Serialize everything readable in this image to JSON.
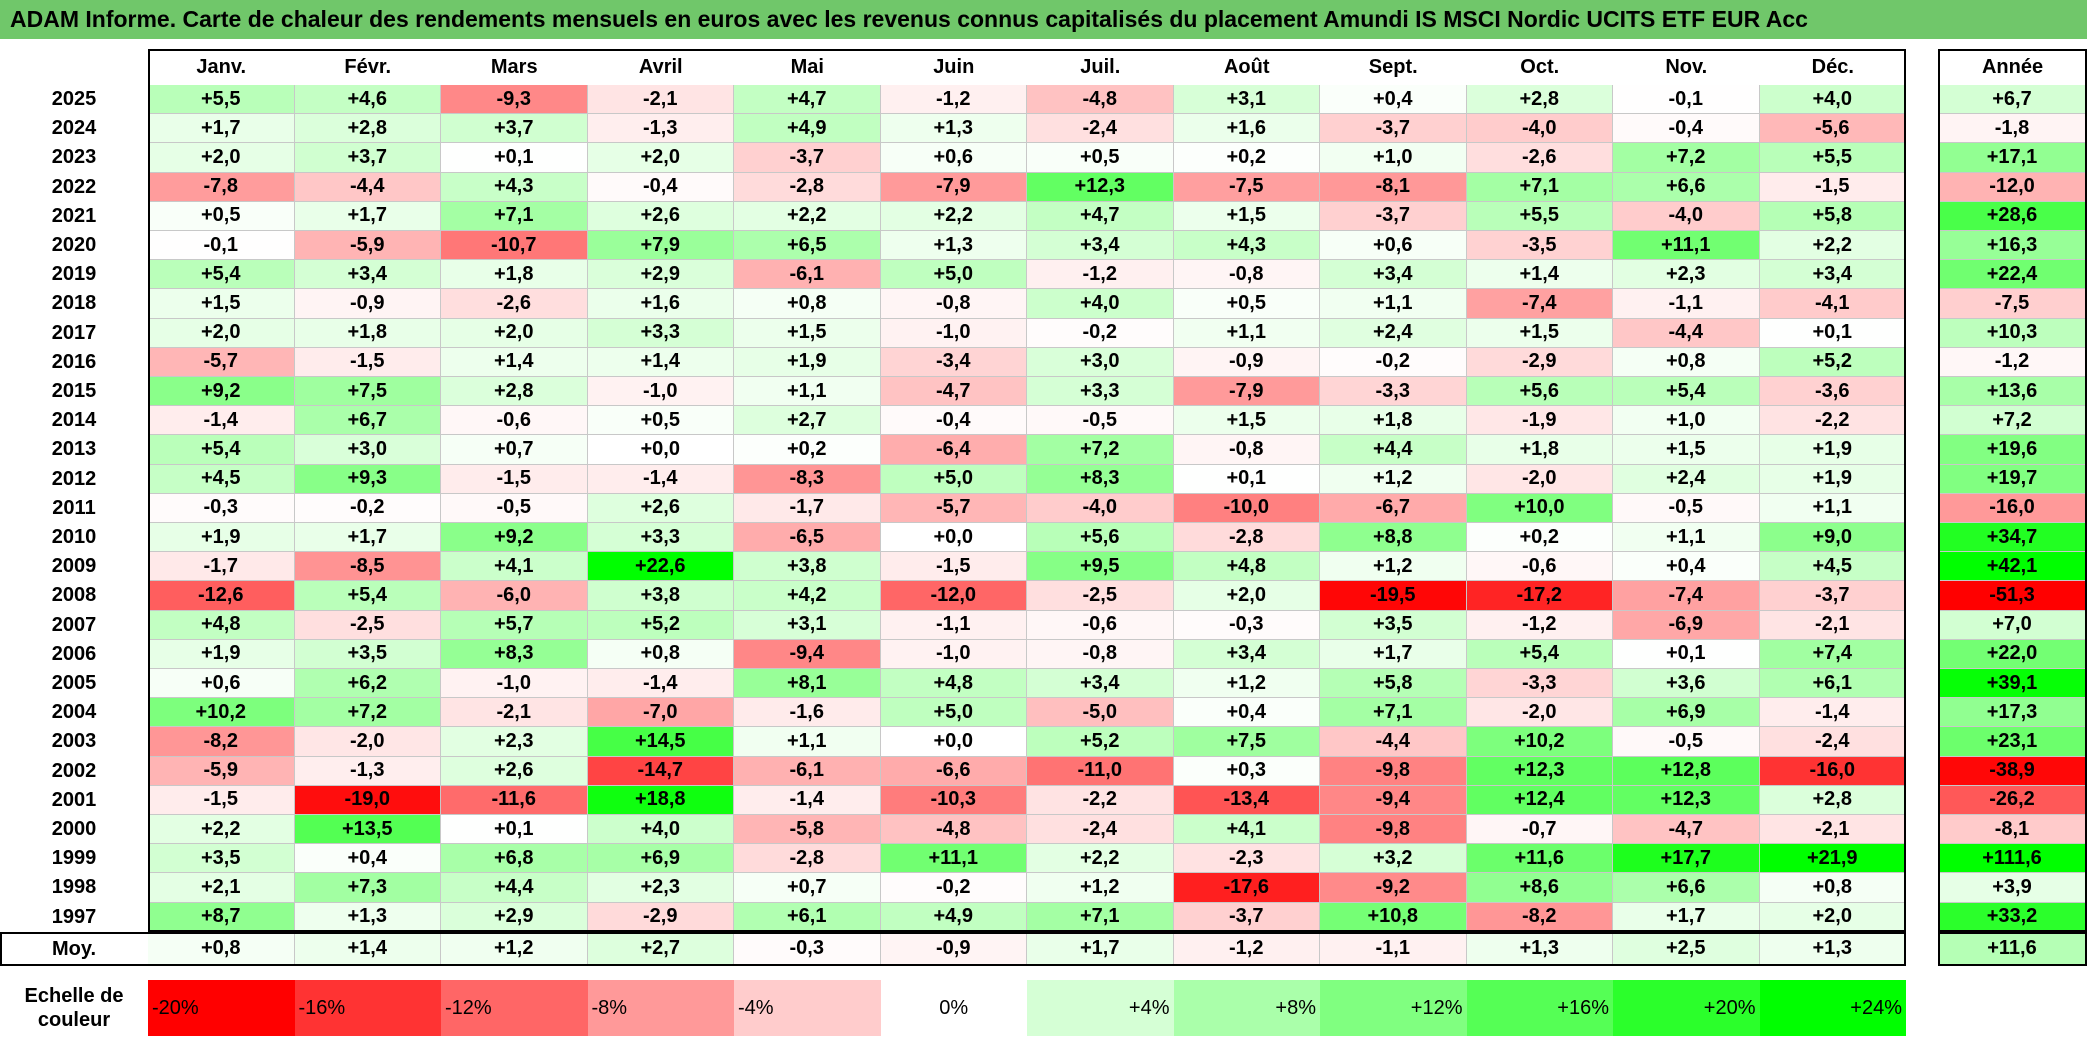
{
  "title": "ADAM Informe. Carte de chaleur des rendements mensuels en euros avec les revenus connus capitalisés du placement Amundi IS MSCI Nordic UCITS ETF EUR Acc",
  "chart_data": {
    "type": "heatmap",
    "columns": [
      "Janv.",
      "Févr.",
      "Mars",
      "Avril",
      "Mai",
      "Juin",
      "Juil.",
      "Août",
      "Sept.",
      "Oct.",
      "Nov.",
      "Déc."
    ],
    "annual_header": "Année",
    "average_label": "Moy.",
    "rows": [
      {
        "year": "2025",
        "values": [
          "+5,5",
          "+4,6",
          "-9,3",
          "-2,1",
          "+4,7",
          "-1,2",
          "-4,8",
          "+3,1",
          "+0,4",
          "+2,8",
          "-0,1",
          "+4,0"
        ],
        "annual": "+6,7"
      },
      {
        "year": "2024",
        "values": [
          "+1,7",
          "+2,8",
          "+3,7",
          "-1,3",
          "+4,9",
          "+1,3",
          "-2,4",
          "+1,6",
          "-3,7",
          "-4,0",
          "-0,4",
          "-5,6"
        ],
        "annual": "-1,8"
      },
      {
        "year": "2023",
        "values": [
          "+2,0",
          "+3,7",
          "+0,1",
          "+2,0",
          "-3,7",
          "+0,6",
          "+0,5",
          "+0,2",
          "+1,0",
          "-2,6",
          "+7,2",
          "+5,5"
        ],
        "annual": "+17,1"
      },
      {
        "year": "2022",
        "values": [
          "-7,8",
          "-4,4",
          "+4,3",
          "-0,4",
          "-2,8",
          "-7,9",
          "+12,3",
          "-7,5",
          "-8,1",
          "+7,1",
          "+6,6",
          "-1,5"
        ],
        "annual": "-12,0"
      },
      {
        "year": "2021",
        "values": [
          "+0,5",
          "+1,7",
          "+7,1",
          "+2,6",
          "+2,2",
          "+2,2",
          "+4,7",
          "+1,5",
          "-3,7",
          "+5,5",
          "-4,0",
          "+5,8"
        ],
        "annual": "+28,6"
      },
      {
        "year": "2020",
        "values": [
          "-0,1",
          "-5,9",
          "-10,7",
          "+7,9",
          "+6,5",
          "+1,3",
          "+3,4",
          "+4,3",
          "+0,6",
          "-3,5",
          "+11,1",
          "+2,2"
        ],
        "annual": "+16,3"
      },
      {
        "year": "2019",
        "values": [
          "+5,4",
          "+3,4",
          "+1,8",
          "+2,9",
          "-6,1",
          "+5,0",
          "-1,2",
          "-0,8",
          "+3,4",
          "+1,4",
          "+2,3",
          "+3,4"
        ],
        "annual": "+22,4"
      },
      {
        "year": "2018",
        "values": [
          "+1,5",
          "-0,9",
          "-2,6",
          "+1,6",
          "+0,8",
          "-0,8",
          "+4,0",
          "+0,5",
          "+1,1",
          "-7,4",
          "-1,1",
          "-4,1"
        ],
        "annual": "-7,5"
      },
      {
        "year": "2017",
        "values": [
          "+2,0",
          "+1,8",
          "+2,0",
          "+3,3",
          "+1,5",
          "-1,0",
          "-0,2",
          "+1,1",
          "+2,4",
          "+1,5",
          "-4,4",
          "+0,1"
        ],
        "annual": "+10,3"
      },
      {
        "year": "2016",
        "values": [
          "-5,7",
          "-1,5",
          "+1,4",
          "+1,4",
          "+1,9",
          "-3,4",
          "+3,0",
          "-0,9",
          "-0,2",
          "-2,9",
          "+0,8",
          "+5,2"
        ],
        "annual": "-1,2"
      },
      {
        "year": "2015",
        "values": [
          "+9,2",
          "+7,5",
          "+2,8",
          "-1,0",
          "+1,1",
          "-4,7",
          "+3,3",
          "-7,9",
          "-3,3",
          "+5,6",
          "+5,4",
          "-3,6"
        ],
        "annual": "+13,6"
      },
      {
        "year": "2014",
        "values": [
          "-1,4",
          "+6,7",
          "-0,6",
          "+0,5",
          "+2,7",
          "-0,4",
          "-0,5",
          "+1,5",
          "+1,8",
          "-1,9",
          "+1,0",
          "-2,2"
        ],
        "annual": "+7,2"
      },
      {
        "year": "2013",
        "values": [
          "+5,4",
          "+3,0",
          "+0,7",
          "+0,0",
          "+0,2",
          "-6,4",
          "+7,2",
          "-0,8",
          "+4,4",
          "+1,8",
          "+1,5",
          "+1,9"
        ],
        "annual": "+19,6"
      },
      {
        "year": "2012",
        "values": [
          "+4,5",
          "+9,3",
          "-1,5",
          "-1,4",
          "-8,3",
          "+5,0",
          "+8,3",
          "+0,1",
          "+1,2",
          "-2,0",
          "+2,4",
          "+1,9"
        ],
        "annual": "+19,7"
      },
      {
        "year": "2011",
        "values": [
          "-0,3",
          "-0,2",
          "-0,5",
          "+2,6",
          "-1,7",
          "-5,7",
          "-4,0",
          "-10,0",
          "-6,7",
          "+10,0",
          "-0,5",
          "+1,1"
        ],
        "annual": "-16,0"
      },
      {
        "year": "2010",
        "values": [
          "+1,9",
          "+1,7",
          "+9,2",
          "+3,3",
          "-6,5",
          "+0,0",
          "+5,6",
          "-2,8",
          "+8,8",
          "+0,2",
          "+1,1",
          "+9,0"
        ],
        "annual": "+34,7"
      },
      {
        "year": "2009",
        "values": [
          "-1,7",
          "-8,5",
          "+4,1",
          "+22,6",
          "+3,8",
          "-1,5",
          "+9,5",
          "+4,8",
          "+1,2",
          "-0,6",
          "+0,4",
          "+4,5"
        ],
        "annual": "+42,1"
      },
      {
        "year": "2008",
        "values": [
          "-12,6",
          "+5,4",
          "-6,0",
          "+3,8",
          "+4,2",
          "-12,0",
          "-2,5",
          "+2,0",
          "-19,5",
          "-17,2",
          "-7,4",
          "-3,7"
        ],
        "annual": "-51,3"
      },
      {
        "year": "2007",
        "values": [
          "+4,8",
          "-2,5",
          "+5,7",
          "+5,2",
          "+3,1",
          "-1,1",
          "-0,6",
          "-0,3",
          "+3,5",
          "-1,2",
          "-6,9",
          "-2,1"
        ],
        "annual": "+7,0"
      },
      {
        "year": "2006",
        "values": [
          "+1,9",
          "+3,5",
          "+8,3",
          "+0,8",
          "-9,4",
          "-1,0",
          "-0,8",
          "+3,4",
          "+1,7",
          "+5,4",
          "+0,1",
          "+7,4"
        ],
        "annual": "+22,0"
      },
      {
        "year": "2005",
        "values": [
          "+0,6",
          "+6,2",
          "-1,0",
          "-1,4",
          "+8,1",
          "+4,8",
          "+3,4",
          "+1,2",
          "+5,8",
          "-3,3",
          "+3,6",
          "+6,1"
        ],
        "annual": "+39,1"
      },
      {
        "year": "2004",
        "values": [
          "+10,2",
          "+7,2",
          "-2,1",
          "-7,0",
          "-1,6",
          "+5,0",
          "-5,0",
          "+0,4",
          "+7,1",
          "-2,0",
          "+6,9",
          "-1,4"
        ],
        "annual": "+17,3"
      },
      {
        "year": "2003",
        "values": [
          "-8,2",
          "-2,0",
          "+2,3",
          "+14,5",
          "+1,1",
          "+0,0",
          "+5,2",
          "+7,5",
          "-4,4",
          "+10,2",
          "-0,5",
          "-2,4"
        ],
        "annual": "+23,1"
      },
      {
        "year": "2002",
        "values": [
          "-5,9",
          "-1,3",
          "+2,6",
          "-14,7",
          "-6,1",
          "-6,6",
          "-11,0",
          "+0,3",
          "-9,8",
          "+12,3",
          "+12,8",
          "-16,0"
        ],
        "annual": "-38,9"
      },
      {
        "year": "2001",
        "values": [
          "-1,5",
          "-19,0",
          "-11,6",
          "+18,8",
          "-1,4",
          "-10,3",
          "-2,2",
          "-13,4",
          "-9,4",
          "+12,4",
          "+12,3",
          "+2,8"
        ],
        "annual": "-26,2"
      },
      {
        "year": "2000",
        "values": [
          "+2,2",
          "+13,5",
          "+0,1",
          "+4,0",
          "-5,8",
          "-4,8",
          "-2,4",
          "+4,1",
          "-9,8",
          "-0,7",
          "-4,7",
          "-2,1"
        ],
        "annual": "-8,1"
      },
      {
        "year": "1999",
        "values": [
          "+3,5",
          "+0,4",
          "+6,8",
          "+6,9",
          "-2,8",
          "+11,1",
          "+2,2",
          "-2,3",
          "+3,2",
          "+11,6",
          "+17,7",
          "+21,9"
        ],
        "annual": "+111,6"
      },
      {
        "year": "1998",
        "values": [
          "+2,1",
          "+7,3",
          "+4,4",
          "+2,3",
          "+0,7",
          "-0,2",
          "+1,2",
          "-17,6",
          "-9,2",
          "+8,6",
          "+6,6",
          "+0,8"
        ],
        "annual": "+3,9"
      },
      {
        "year": "1997",
        "values": [
          "+8,7",
          "+1,3",
          "+2,9",
          "-2,9",
          "+6,1",
          "+4,9",
          "+7,1",
          "-3,7",
          "+10,8",
          "-8,2",
          "+1,7",
          "+2,0"
        ],
        "annual": "+33,2"
      }
    ],
    "average": {
      "values": [
        "+0,8",
        "+1,4",
        "+1,2",
        "+2,7",
        "-0,3",
        "-0,9",
        "+1,7",
        "-1,2",
        "-1,1",
        "+1,3",
        "+2,5",
        "+1,3"
      ],
      "annual": "+11,6"
    },
    "color_scale": {
      "label": "Echelle de couleur",
      "stops": [
        {
          "label": "-20%",
          "value": -20,
          "color": "#ff0000"
        },
        {
          "label": "-16%",
          "value": -16,
          "color": "#ff3333"
        },
        {
          "label": "-12%",
          "value": -12,
          "color": "#ff6666"
        },
        {
          "label": "-8%",
          "value": -8,
          "color": "#ff9999"
        },
        {
          "label": "-4%",
          "value": -4,
          "color": "#ffcccc"
        },
        {
          "label": "0%",
          "value": 0,
          "color": "#ffffff"
        },
        {
          "label": "+4%",
          "value": 4,
          "color": "#d5ffd5"
        },
        {
          "label": "+8%",
          "value": 8,
          "color": "#aaffaa"
        },
        {
          "label": "+12%",
          "value": 12,
          "color": "#80ff80"
        },
        {
          "label": "+16%",
          "value": 16,
          "color": "#55ff55"
        },
        {
          "label": "+20%",
          "value": 20,
          "color": "#2bff2b"
        },
        {
          "label": "+24%",
          "value": 24,
          "color": "#00ff00"
        }
      ]
    }
  }
}
